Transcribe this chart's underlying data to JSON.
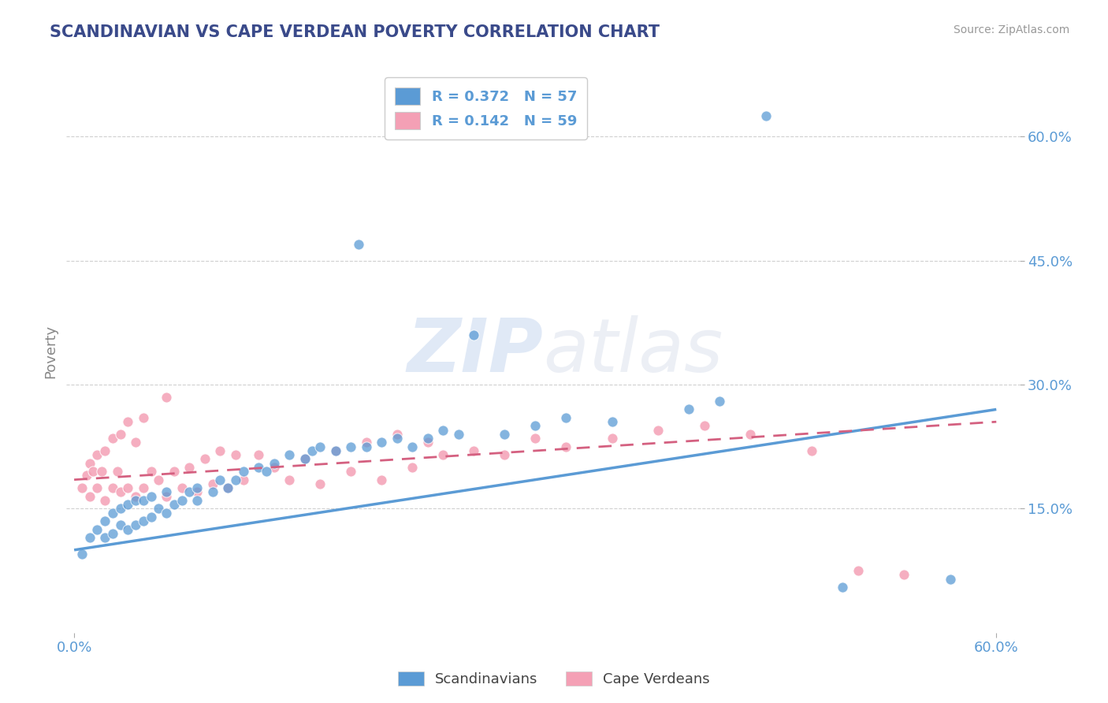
{
  "title": "SCANDINAVIAN VS CAPE VERDEAN POVERTY CORRELATION CHART",
  "source": "Source: ZipAtlas.com",
  "ylabel": "Poverty",
  "xlim": [
    0.0,
    0.6
  ],
  "ylim": [
    0.0,
    0.68
  ],
  "yticks": [
    0.15,
    0.3,
    0.45,
    0.6
  ],
  "ytick_labels": [
    "15.0%",
    "30.0%",
    "45.0%",
    "60.0%"
  ],
  "xticks": [
    0.0,
    0.6
  ],
  "xtick_labels": [
    "0.0%",
    "60.0%"
  ],
  "legend_r1": "R = 0.372   N = 57",
  "legend_r2": "R = 0.142   N = 59",
  "watermark_zip": "ZIP",
  "watermark_atlas": "atlas",
  "scandinavian_color": "#5b9bd5",
  "cape_verdean_color": "#f4a0b5",
  "cape_line_color": "#d46080",
  "title_color": "#3a4a8a",
  "axis_label_color": "#888888",
  "tick_label_color": "#5b9bd5",
  "grid_color": "#d0d0d0",
  "legend_r_color": "#5b9bd5",
  "background_color": "#ffffff",
  "scand_line_start_y": 0.1,
  "scand_line_end_y": 0.27,
  "cape_line_start_y": 0.185,
  "cape_line_end_y": 0.255,
  "scand_pts_x": [
    0.005,
    0.01,
    0.015,
    0.02,
    0.02,
    0.025,
    0.025,
    0.03,
    0.03,
    0.035,
    0.035,
    0.04,
    0.04,
    0.045,
    0.045,
    0.05,
    0.05,
    0.055,
    0.06,
    0.06,
    0.065,
    0.07,
    0.075,
    0.08,
    0.08,
    0.09,
    0.095,
    0.1,
    0.105,
    0.11,
    0.12,
    0.125,
    0.13,
    0.14,
    0.15,
    0.155,
    0.16,
    0.17,
    0.18,
    0.185,
    0.19,
    0.2,
    0.21,
    0.22,
    0.23,
    0.24,
    0.25,
    0.26,
    0.28,
    0.3,
    0.32,
    0.35,
    0.4,
    0.42,
    0.45,
    0.5,
    0.57
  ],
  "scand_pts_y": [
    0.095,
    0.115,
    0.125,
    0.115,
    0.135,
    0.12,
    0.145,
    0.13,
    0.15,
    0.125,
    0.155,
    0.13,
    0.16,
    0.135,
    0.16,
    0.14,
    0.165,
    0.15,
    0.145,
    0.17,
    0.155,
    0.16,
    0.17,
    0.16,
    0.175,
    0.17,
    0.185,
    0.175,
    0.185,
    0.195,
    0.2,
    0.195,
    0.205,
    0.215,
    0.21,
    0.22,
    0.225,
    0.22,
    0.225,
    0.47,
    0.225,
    0.23,
    0.235,
    0.225,
    0.235,
    0.245,
    0.24,
    0.36,
    0.24,
    0.25,
    0.26,
    0.255,
    0.27,
    0.28,
    0.625,
    0.055,
    0.065
  ],
  "cape_pts_x": [
    0.005,
    0.008,
    0.01,
    0.01,
    0.012,
    0.015,
    0.015,
    0.018,
    0.02,
    0.02,
    0.025,
    0.025,
    0.028,
    0.03,
    0.03,
    0.035,
    0.035,
    0.04,
    0.04,
    0.045,
    0.045,
    0.05,
    0.055,
    0.06,
    0.06,
    0.065,
    0.07,
    0.075,
    0.08,
    0.085,
    0.09,
    0.095,
    0.1,
    0.105,
    0.11,
    0.12,
    0.13,
    0.14,
    0.15,
    0.16,
    0.17,
    0.18,
    0.19,
    0.2,
    0.21,
    0.22,
    0.23,
    0.24,
    0.26,
    0.28,
    0.3,
    0.32,
    0.35,
    0.38,
    0.41,
    0.44,
    0.48,
    0.51,
    0.54
  ],
  "cape_pts_y": [
    0.175,
    0.19,
    0.165,
    0.205,
    0.195,
    0.175,
    0.215,
    0.195,
    0.16,
    0.22,
    0.175,
    0.235,
    0.195,
    0.17,
    0.24,
    0.175,
    0.255,
    0.165,
    0.23,
    0.175,
    0.26,
    0.195,
    0.185,
    0.165,
    0.285,
    0.195,
    0.175,
    0.2,
    0.17,
    0.21,
    0.18,
    0.22,
    0.175,
    0.215,
    0.185,
    0.215,
    0.2,
    0.185,
    0.21,
    0.18,
    0.22,
    0.195,
    0.23,
    0.185,
    0.24,
    0.2,
    0.23,
    0.215,
    0.22,
    0.215,
    0.235,
    0.225,
    0.235,
    0.245,
    0.25,
    0.24,
    0.22,
    0.075,
    0.07
  ]
}
